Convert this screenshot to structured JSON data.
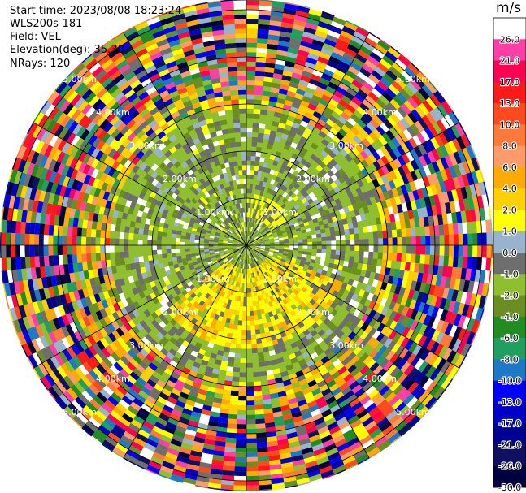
{
  "info": {
    "start_time": "Start time: 2023/08/08 18:23:24",
    "radar": "WLS200s-181",
    "field": "Field: VEL",
    "elevation": "Elevation(deg): 35.30",
    "nrays": "NRays: 120"
  },
  "chart_data": {
    "type": "heatmap",
    "projection": "polar-ppi",
    "field": "VEL",
    "units": "m/s",
    "n_rays": 120,
    "range_rings_km": [
      1,
      2,
      3,
      4,
      5
    ],
    "ring_labels": [
      "1.00km",
      "2.00km",
      "3.00km",
      "4.00km",
      "5.00km"
    ],
    "spoke_angles_deg": [
      0,
      30,
      60,
      90,
      120,
      150,
      180,
      210,
      240,
      270,
      300,
      330
    ],
    "colorbar": {
      "title": "m/s",
      "range": [
        -30,
        30
      ],
      "tick_labels": [
        "26.0",
        "21.0",
        "17.0",
        "13.0",
        "10.0",
        "8.0",
        "6.0",
        "4.0",
        "2.0",
        "1.0",
        "0.0",
        "-1.0",
        "-2.0",
        "-4.0",
        "-6.0",
        "-8.0",
        "-10.0",
        "-13.0",
        "-17.0",
        "-21.0",
        "-26.0",
        "-30.0"
      ],
      "colors": [
        "#ffffff",
        "#ff3fa5",
        "#ff0055",
        "#ff1a1a",
        "#ff4a1f",
        "#ff7a3a",
        "#ff9a6a",
        "#ffaa00",
        "#ffd000",
        "#ffff00",
        "#99b3cc",
        "#6e6e6e",
        "#8fbf2f",
        "#6b8e23",
        "#228b22",
        "#20a060",
        "#1e78c8",
        "#0000ff",
        "#0000c8",
        "#000090",
        "#101060",
        "#000040"
      ]
    },
    "regions": [
      {
        "range_km": [
          0,
          1.0
        ],
        "description_value": "mixed",
        "dominant_colors": [
          "#8fbf2f",
          "#ffff00",
          "#6e6e6e"
        ]
      },
      {
        "range_km": [
          1.0,
          2.5
        ],
        "dominant_colors": [
          "#8fbf2f",
          "#6b8e23",
          "#6e6e6e",
          "#ffff00"
        ]
      },
      {
        "range_km": [
          2.5,
          3.5
        ],
        "dominant_colors": [
          "#8fbf2f",
          "#6e6e6e",
          "#ffff00",
          "#ffaa00"
        ]
      },
      {
        "range_km": [
          3.5,
          6.0
        ],
        "dominant_colors": [
          "#ff3fa5",
          "#ff0055",
          "#ffff00",
          "#0000c8",
          "#000040",
          "#228b22",
          "#ffffff",
          "#ffaa00",
          "#6e6e6e"
        ]
      }
    ]
  }
}
